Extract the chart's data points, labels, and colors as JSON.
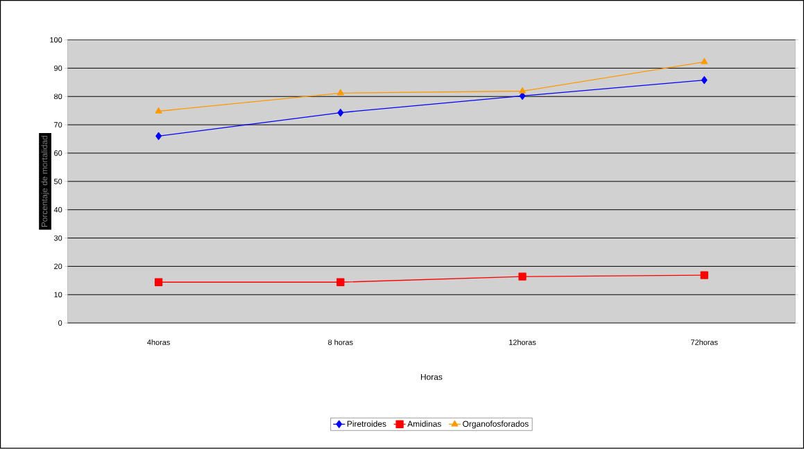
{
  "chart_data": {
    "type": "line",
    "xlabel": "Horas",
    "ylabel": "Porcentaje de mortalidad",
    "categories": [
      "4horas",
      "8 horas",
      "12horas",
      "72horas"
    ],
    "series": [
      {
        "name": "Piretroides",
        "color": "#0000ff",
        "marker": "diamond",
        "values": [
          66,
          74.3,
          80.2,
          85.8
        ]
      },
      {
        "name": "Amidinas",
        "color": "#ff0000",
        "marker": "square",
        "values": [
          14.4,
          14.4,
          16.4,
          16.9
        ]
      },
      {
        "name": "Organofosforados",
        "color": "#ff9900",
        "marker": "triangle",
        "values": [
          74.8,
          81.2,
          81.9,
          92.2
        ]
      }
    ],
    "ylim": [
      0,
      100
    ],
    "yticks": [
      0,
      10,
      20,
      30,
      40,
      50,
      60,
      70,
      80,
      90,
      100
    ],
    "grid": "y",
    "legend": "bottom"
  }
}
